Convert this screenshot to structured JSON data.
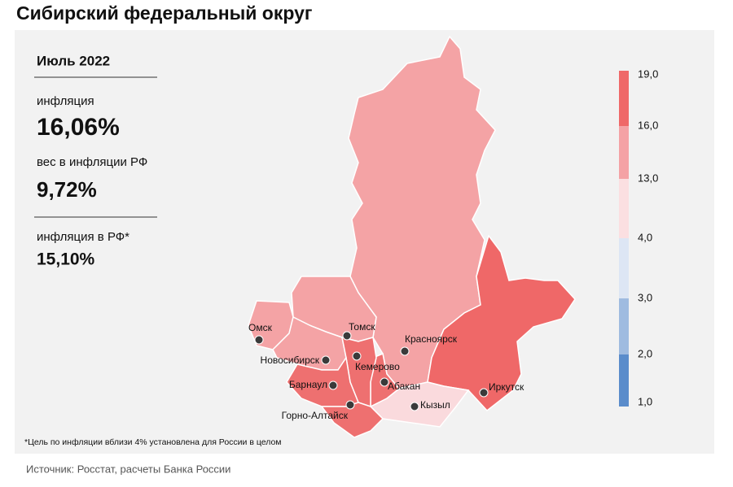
{
  "header": {
    "title": "Сибирский федеральный округ"
  },
  "summary": {
    "period": "Июль 2022",
    "inflation_label": "инфляция",
    "inflation_value": "16,06%",
    "weight_label": "вес в инфляции РФ",
    "weight_value": "9,72%",
    "russia_label": "инфляция в РФ*",
    "russia_value": "15,10%"
  },
  "legend": {
    "ticks": [
      "19,0",
      "16,0",
      "13,0",
      "4,0",
      "3,0",
      "2,0",
      "1,0"
    ],
    "colors": [
      "#ef6868",
      "#f4a2a5",
      "#fbdfe1",
      "#dde6f4",
      "#9fbbe0",
      "#5a8ccb"
    ]
  },
  "cities": [
    "Омск",
    "Томск",
    "Новосибирск",
    "Красноярск",
    "Кемерово",
    "Барнаул",
    "Абакан",
    "Иркутск",
    "Горно-Алтайск",
    "Кызыл"
  ],
  "footnote": "*Цель по инфляции вблизи 4% установлена для России в целом",
  "source": "Источник: Росстат, расчеты Банка России"
}
